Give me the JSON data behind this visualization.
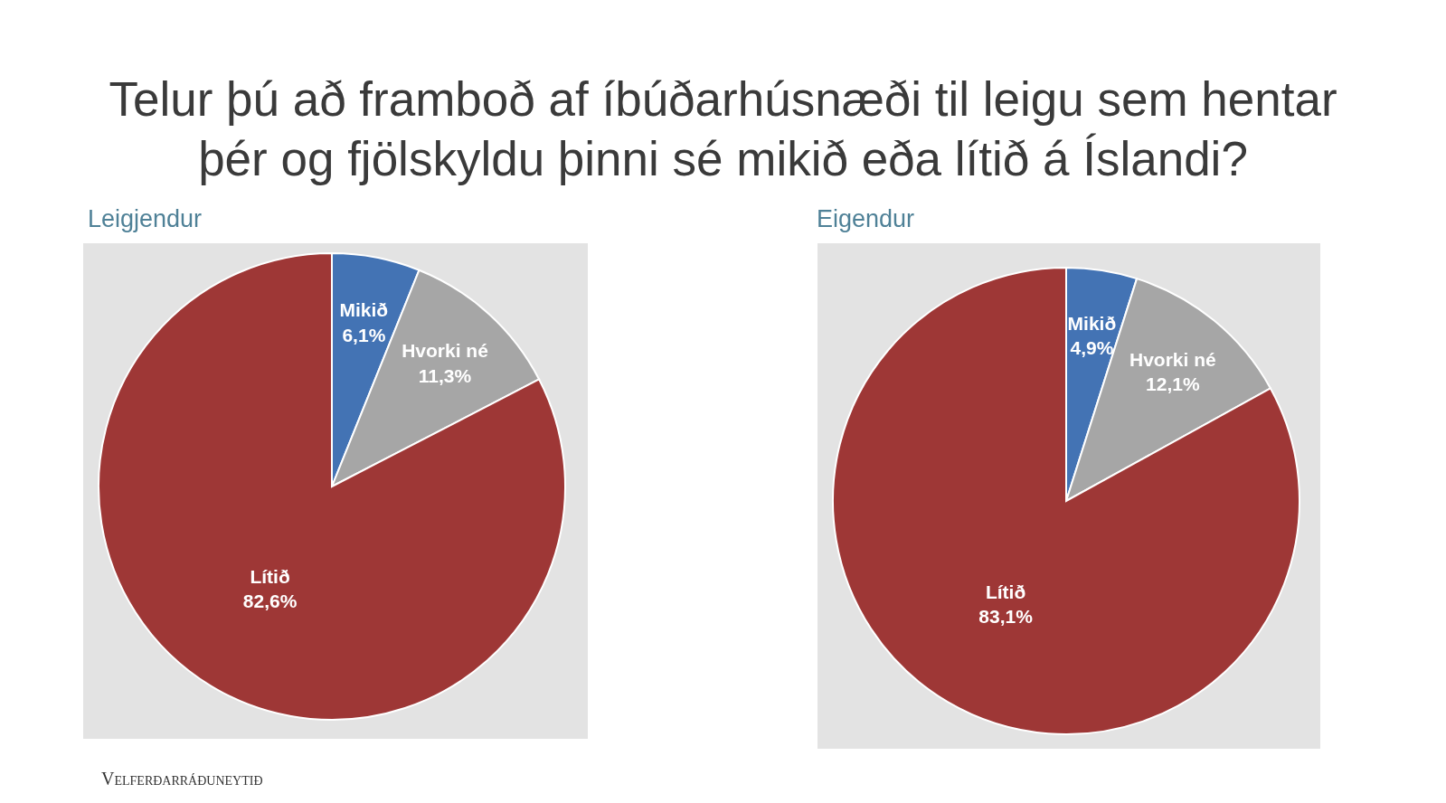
{
  "chart_data": [
    {
      "type": "pie",
      "title": "Telur þú að framboð af íbúðarhúsnæði til leigu sem hentar þér og fjölskyldu þinni sé mikið eða lítið á Íslandi?",
      "subtitle": "Leigjendur",
      "categories": [
        "Mikið",
        "Hvorki né",
        "Lítið"
      ],
      "values": [
        6.1,
        11.3,
        82.6
      ],
      "colors": [
        "#4373b4",
        "#a6a6a6",
        "#9e3736"
      ],
      "value_labels": [
        "6,1%",
        "11,3%",
        "82,6%"
      ],
      "annotations": [
        "Velferðarráðuneytið"
      ]
    },
    {
      "type": "pie",
      "subtitle": "Eigendur",
      "categories": [
        "Mikið",
        "Hvorki né",
        "Lítið"
      ],
      "values": [
        4.9,
        12.1,
        83.1
      ],
      "colors": [
        "#4373b4",
        "#a6a6a6",
        "#9e3736"
      ],
      "value_labels": [
        "4,9%",
        "12,1%",
        "83,1%"
      ]
    }
  ]
}
